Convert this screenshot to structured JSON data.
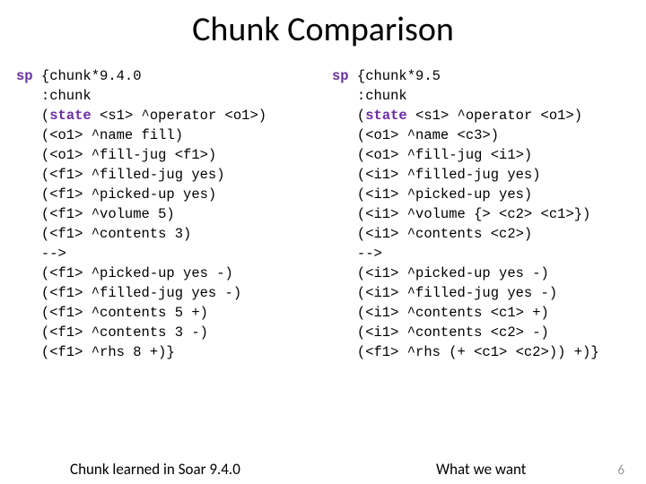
{
  "title": "Chunk Comparison",
  "page_number": "6",
  "left": {
    "caption": "Chunk learned in Soar 9.4.0",
    "lines": [
      {
        "segs": [
          {
            "t": "sp ",
            "kw": true
          },
          {
            "t": "{chunk*9.4.0"
          }
        ]
      },
      {
        "segs": [
          {
            "t": "   :chunk"
          }
        ]
      },
      {
        "segs": [
          {
            "t": "   ("
          },
          {
            "t": "state",
            "kw": true
          },
          {
            "t": " <s1> ^operator <o1>)"
          }
        ]
      },
      {
        "segs": [
          {
            "t": "   (<o1> ^name fill)"
          }
        ]
      },
      {
        "segs": [
          {
            "t": "   (<o1> ^fill-jug <f1>)"
          }
        ]
      },
      {
        "segs": [
          {
            "t": "   (<f1> ^filled-jug yes)"
          }
        ]
      },
      {
        "segs": [
          {
            "t": "   (<f1> ^picked-up yes)"
          }
        ]
      },
      {
        "segs": [
          {
            "t": "   (<f1> ^volume 5)"
          }
        ]
      },
      {
        "segs": [
          {
            "t": "   (<f1> ^contents 3)"
          }
        ]
      },
      {
        "segs": [
          {
            "t": "   -->"
          }
        ]
      },
      {
        "segs": [
          {
            "t": "   (<f1> ^picked-up yes -)"
          }
        ]
      },
      {
        "segs": [
          {
            "t": "   (<f1> ^filled-jug yes -)"
          }
        ]
      },
      {
        "segs": [
          {
            "t": "   (<f1> ^contents 5 +)"
          }
        ]
      },
      {
        "segs": [
          {
            "t": "   (<f1> ^contents 3 -)"
          }
        ]
      },
      {
        "segs": [
          {
            "t": "   (<f1> ^rhs 8 +)}"
          }
        ]
      }
    ]
  },
  "right": {
    "caption": "What we want",
    "lines": [
      {
        "segs": [
          {
            "t": "sp ",
            "kw": true
          },
          {
            "t": "{chunk*9.5"
          }
        ]
      },
      {
        "segs": [
          {
            "t": "   :chunk"
          }
        ]
      },
      {
        "segs": [
          {
            "t": "   ("
          },
          {
            "t": "state",
            "kw": true
          },
          {
            "t": " <s1> ^operator <o1>)"
          }
        ]
      },
      {
        "segs": [
          {
            "t": "   (<o1> ^name <c3>)"
          }
        ]
      },
      {
        "segs": [
          {
            "t": "   (<o1> ^fill-jug <i1>)"
          }
        ]
      },
      {
        "segs": [
          {
            "t": "   (<i1> ^filled-jug yes)"
          }
        ]
      },
      {
        "segs": [
          {
            "t": "   (<i1> ^picked-up yes)"
          }
        ]
      },
      {
        "segs": [
          {
            "t": "   (<i1> ^volume {> <c2> <c1>})"
          }
        ]
      },
      {
        "segs": [
          {
            "t": "   (<i1> ^contents <c2>)"
          }
        ]
      },
      {
        "segs": [
          {
            "t": "   -->"
          }
        ]
      },
      {
        "segs": [
          {
            "t": "   (<i1> ^picked-up yes -)"
          }
        ]
      },
      {
        "segs": [
          {
            "t": "   (<i1> ^filled-jug yes -)"
          }
        ]
      },
      {
        "segs": [
          {
            "t": "   (<i1> ^contents <c1> +)"
          }
        ]
      },
      {
        "segs": [
          {
            "t": "   (<i1> ^contents <c2> -)"
          }
        ]
      },
      {
        "segs": [
          {
            "t": "   (<f1> ^rhs (+ <c1> <c2>)) +)}"
          }
        ]
      }
    ]
  },
  "colors": {
    "text": "#000000",
    "keyword": "#6a2fa0",
    "background": "#ffffff",
    "pagenum": "#9a9a9a"
  },
  "font": {
    "title_family": "Calibri",
    "code_family": "Consolas",
    "title_size_pt": 38,
    "code_size_pt": 15.5,
    "caption_size_pt": 17
  }
}
